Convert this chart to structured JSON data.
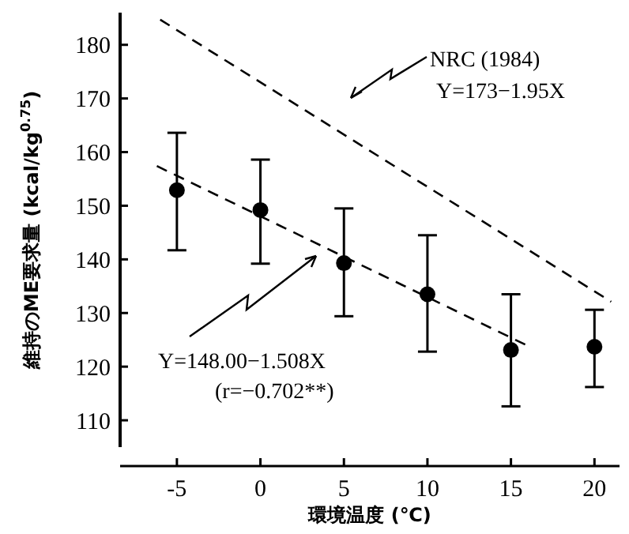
{
  "chart_data": {
    "type": "scatter",
    "xlabel": "環境温度 (℃)",
    "ylabel": "維持のME要求量 (kcal/kg$^{0.75}$)",
    "x": [
      -5,
      0,
      5,
      10,
      15,
      20
    ],
    "series": [
      {
        "color": "#000000",
        "marker": "circle",
        "values": [
          152.9,
          149.2,
          139.3,
          133.5,
          123.1,
          123.7
        ],
        "errors": [
          [
            141.7,
            163.6
          ],
          [
            139.2,
            158.6
          ],
          [
            129.4,
            149.5
          ],
          [
            122.8,
            144.5
          ],
          [
            112.6,
            133.5
          ],
          [
            116.2,
            130.6
          ]
        ]
      },
      {
        "type": "line",
        "color": "#000000",
        "line_style": "dashed",
        "x": [
          -6,
          21
        ],
        "values": [
          184.7,
          132.1
        ]
      },
      {
        "type": "line",
        "color": "#000000",
        "line_style": "dashed",
        "x": [
          -6.2,
          16
        ],
        "values": [
          157.4,
          123.9
        ]
      }
    ],
    "xlim": [
      -8.4,
      21.5
    ],
    "xticks": [
      -5,
      0,
      5,
      10,
      15,
      20
    ],
    "ylim": [
      105,
      186
    ],
    "yticks": [
      110,
      120,
      130,
      140,
      150,
      160,
      170,
      180
    ],
    "grid": false,
    "annotations": [
      "NRC (1984)",
      "Y=173−1.95X",
      "Y=148.00−1.508X",
      "(r=−0.702**)"
    ]
  }
}
